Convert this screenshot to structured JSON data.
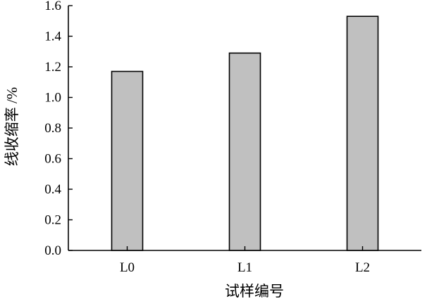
{
  "chart_data": {
    "type": "bar",
    "categories": [
      "L0",
      "L1",
      "L2"
    ],
    "values": [
      1.17,
      1.29,
      1.53
    ],
    "xlabel": "试样编号",
    "ylabel": "线收缩率 /%",
    "ylim": [
      0,
      1.6
    ],
    "yticks": [
      "0.0",
      "0.2",
      "0.4",
      "0.6",
      "0.8",
      "1.0",
      "1.2",
      "1.4",
      "1.6"
    ],
    "grid": false,
    "legend": "none",
    "bar_color": "#c0c0c0",
    "bar_edge_color": "#000000"
  }
}
